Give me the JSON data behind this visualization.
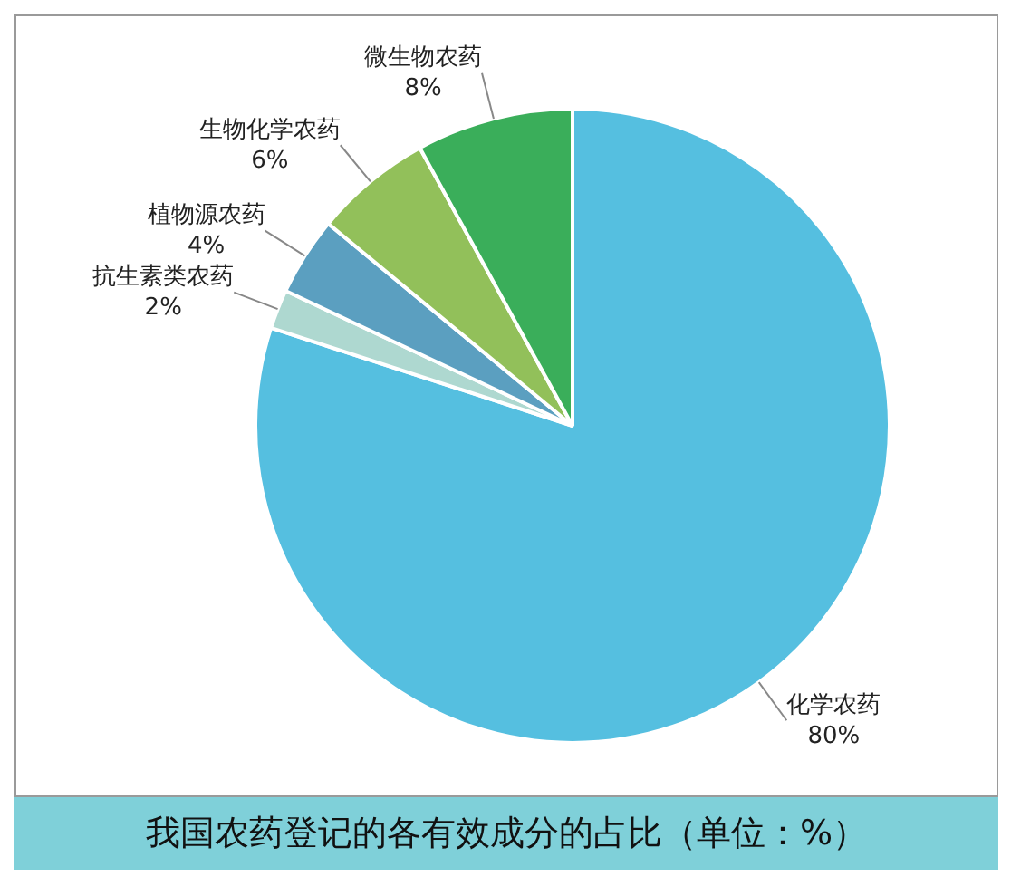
{
  "chart_data": {
    "type": "pie",
    "title": "我国农药登记的各有效成分的占比（单位：%）",
    "categories": [
      "化学农药",
      "抗生素类农药",
      "植物源农药",
      "生物化学农药",
      "微生物农药"
    ],
    "values": [
      80,
      2,
      4,
      6,
      8
    ],
    "value_labels": [
      "80%",
      "2%",
      "4%",
      "6%",
      "8%"
    ],
    "colors": [
      "#55bfe0",
      "#aed8d0",
      "#5b9fc0",
      "#92c05a",
      "#3aae5a"
    ],
    "legend": false
  }
}
